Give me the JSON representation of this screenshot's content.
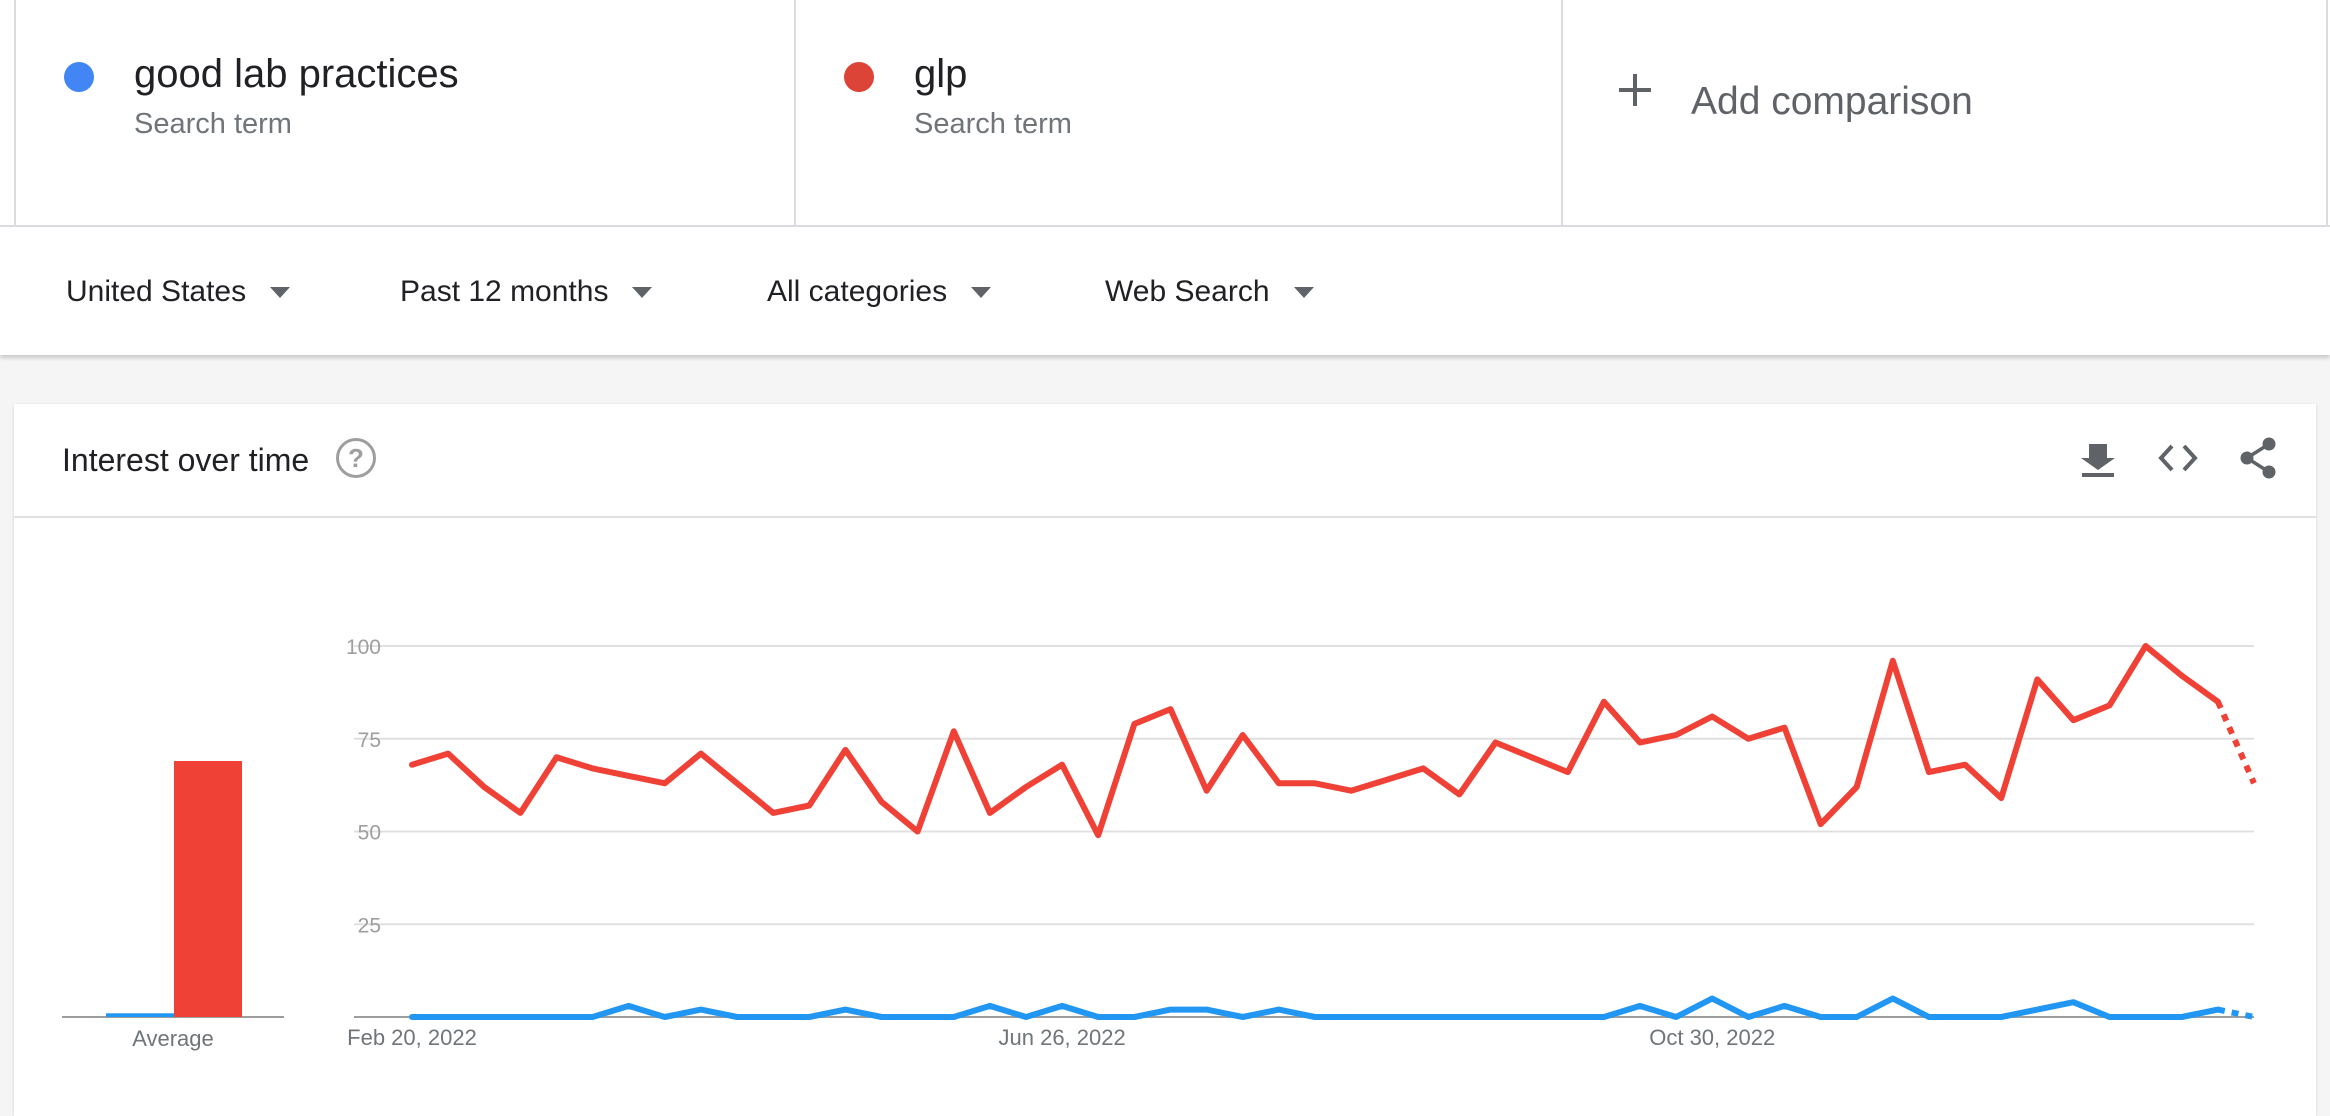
{
  "terms": [
    {
      "name": "good lab practices",
      "sub": "Search term",
      "color": "#4285f4"
    },
    {
      "name": "glp",
      "sub": "Search term",
      "color": "#db4437"
    }
  ],
  "add_comparison": "Add comparison",
  "filters": {
    "region": "United States",
    "time": "Past 12 months",
    "category": "All categories",
    "search_type": "Web Search"
  },
  "card": {
    "title": "Interest over time",
    "help_icon": "help-circle-icon",
    "tools": [
      "download-icon",
      "embed-code-icon",
      "share-icon"
    ]
  },
  "chart_data": {
    "type": "line",
    "ylim": [
      0,
      100
    ],
    "yticks": [
      25,
      50,
      75,
      100
    ],
    "xtick_labels": [
      {
        "index": 0,
        "label": "Feb 20, 2022"
      },
      {
        "index": 18,
        "label": "Jun 26, 2022"
      },
      {
        "index": 36,
        "label": "Oct 30, 2022"
      }
    ],
    "grid": true,
    "partial_last_point": true,
    "series": [
      {
        "color": "#ef4136",
        "values": [
          68,
          71,
          62,
          55,
          70,
          67,
          65,
          63,
          71,
          63,
          55,
          57,
          72,
          58,
          50,
          77,
          55,
          62,
          68,
          49,
          79,
          83,
          61,
          76,
          63,
          63,
          61,
          64,
          67,
          60,
          74,
          70,
          66,
          85,
          74,
          76,
          81,
          75,
          78,
          52,
          62,
          96,
          66,
          68,
          59,
          91,
          80,
          84,
          100,
          92,
          85,
          63
        ]
      },
      {
        "color": "#2196f3",
        "values": [
          0,
          0,
          0,
          0,
          0,
          0,
          3,
          0,
          2,
          0,
          0,
          0,
          2,
          0,
          0,
          0,
          3,
          0,
          3,
          0,
          0,
          2,
          2,
          0,
          2,
          0,
          0,
          0,
          0,
          0,
          0,
          0,
          0,
          0,
          3,
          0,
          5,
          0,
          3,
          0,
          0,
          5,
          0,
          0,
          0,
          2,
          4,
          0,
          0,
          0,
          2,
          0
        ]
      }
    ],
    "average": {
      "label": "Average",
      "values": [
        1,
        69
      ],
      "colors": [
        "#2196f3",
        "#ef4136"
      ]
    }
  }
}
